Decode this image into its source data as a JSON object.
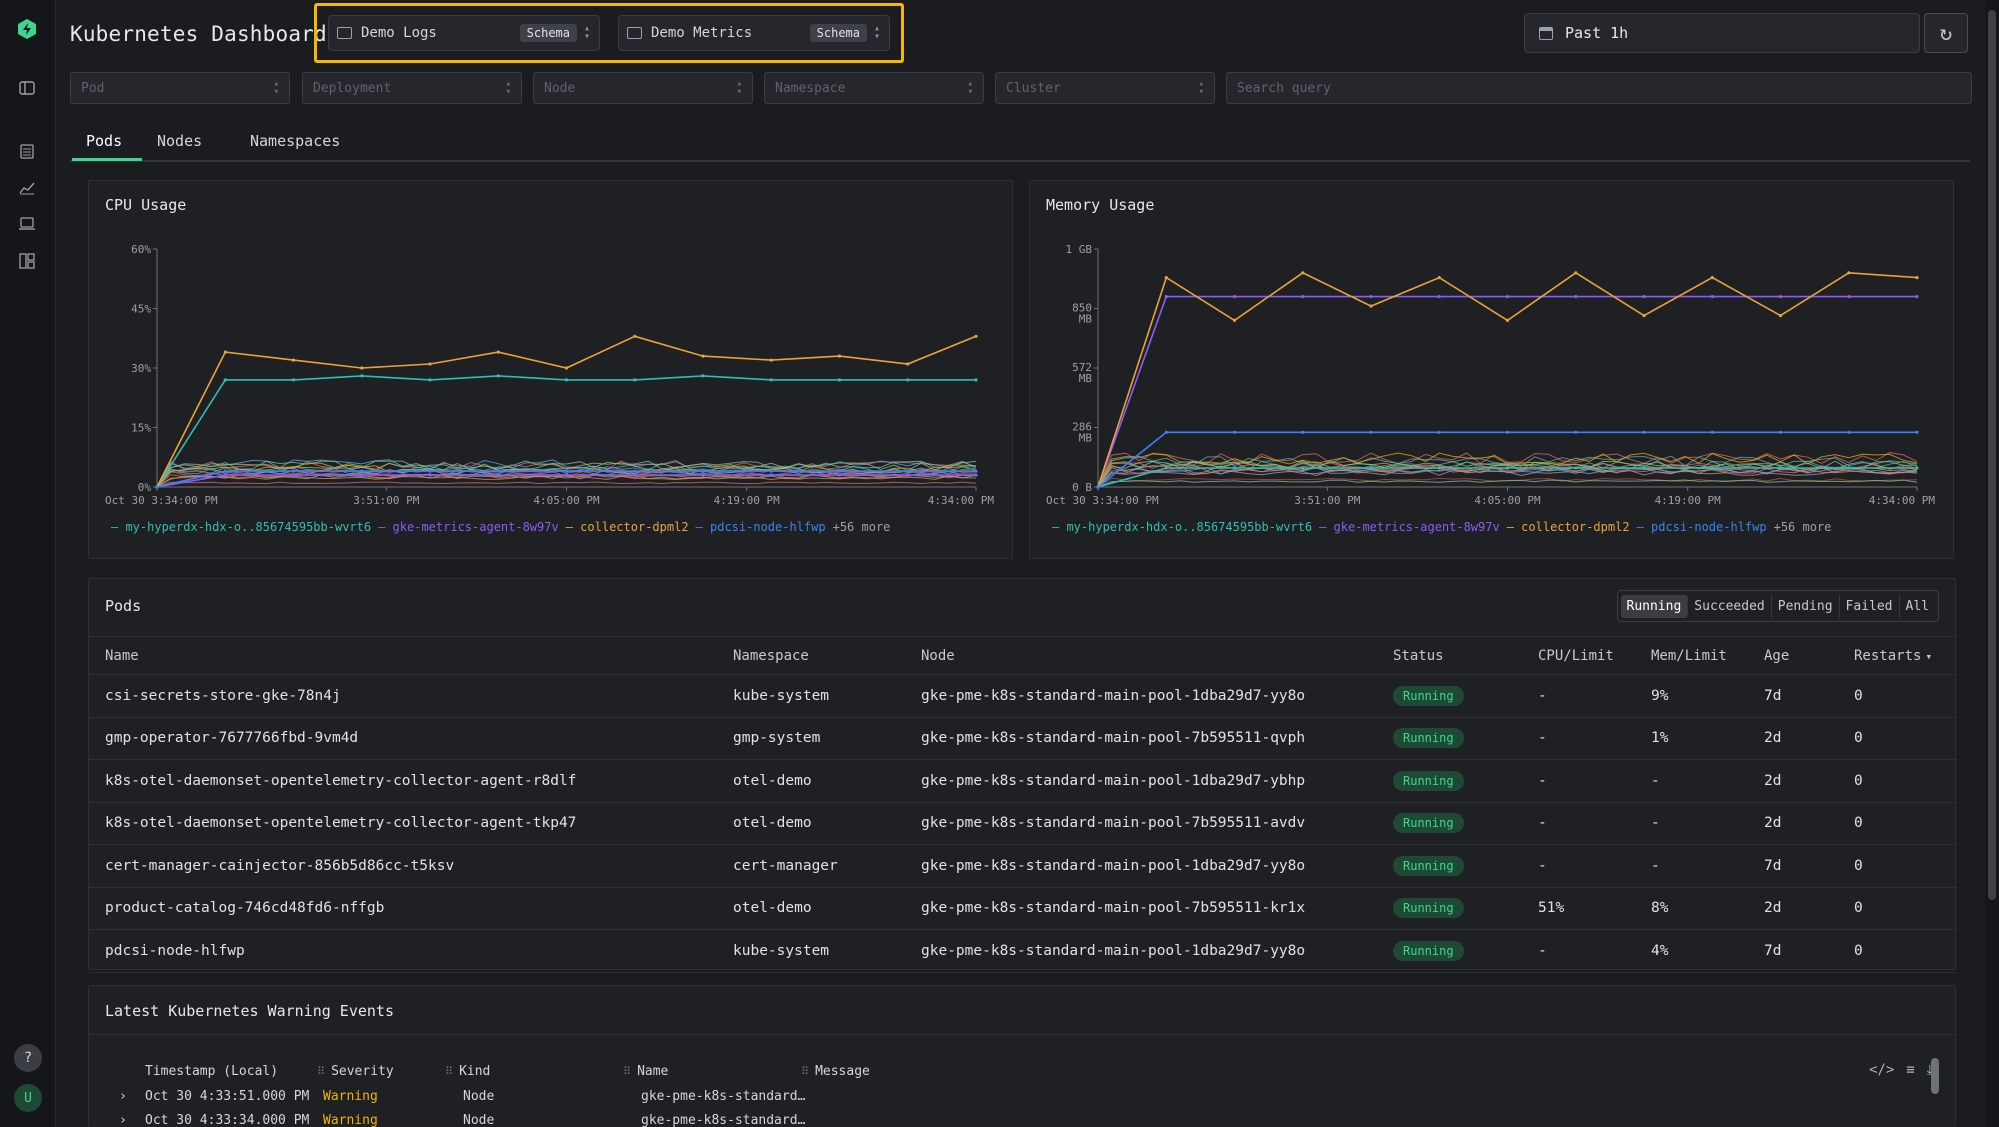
{
  "app": {
    "title": "Kubernetes Dashboard"
  },
  "sources": [
    {
      "label": "Demo Logs",
      "badge": "Schema"
    },
    {
      "label": "Demo Metrics",
      "badge": "Schema"
    }
  ],
  "time_range": {
    "label": "Past 1h"
  },
  "filters": {
    "pod": "Pod",
    "deployment": "Deployment",
    "node": "Node",
    "namespace": "Namespace",
    "cluster": "Cluster",
    "search_placeholder": "Search query"
  },
  "tabs": [
    {
      "label": "Pods",
      "active": true
    },
    {
      "label": "Nodes"
    },
    {
      "label": "Namespaces"
    }
  ],
  "charts": {
    "cpu": {
      "title": "CPU Usage",
      "yticks": [
        "60%",
        "45%",
        "30%",
        "15%",
        "0%"
      ],
      "xticks": [
        "Oct 30 3:34:00 PM",
        "3:51:00 PM",
        "4:05:00 PM",
        "4:19:00 PM",
        "4:34:00 PM"
      ]
    },
    "memory": {
      "title": "Memory Usage",
      "yticks": [
        "1 GB",
        "850 MB",
        "572 MB",
        "286 MB",
        "0 B"
      ],
      "xticks": [
        "Oct 30 3:34:00 PM",
        "3:51:00 PM",
        "4:05:00 PM",
        "4:19:00 PM",
        "4:34:00 PM"
      ]
    },
    "legend": [
      {
        "name": "my-hyperdx-hdx-o..85674595bb-wvrt6",
        "color": "#2ebfb1"
      },
      {
        "name": "gke-metrics-agent-8w97v",
        "color": "#8b5cf6"
      },
      {
        "name": "collector-dpml2",
        "color": "#e8a43a"
      },
      {
        "name": "pdcsi-node-hlfwp",
        "color": "#3b82f6"
      }
    ],
    "legend_more": "+56 more"
  },
  "chart_data": [
    {
      "type": "line",
      "title": "CPU Usage",
      "ylim": [
        0,
        60
      ],
      "y_unit": "%",
      "x": [
        "3:34",
        "3:39",
        "3:44",
        "3:49",
        "3:54",
        "3:59",
        "4:04",
        "4:09",
        "4:14",
        "4:19",
        "4:24",
        "4:29",
        "4:34"
      ],
      "series": [
        {
          "name": "my-hyperdx-hdx-o..85674595bb-wvrt6",
          "values": [
            0,
            27,
            27,
            28,
            27,
            28,
            27,
            27,
            28,
            27,
            27,
            27,
            27
          ]
        },
        {
          "name": "gke-metrics-agent-8w97v",
          "values": [
            0,
            3,
            3,
            3,
            3,
            3,
            3,
            3,
            3,
            3,
            3,
            3,
            3
          ]
        },
        {
          "name": "collector-dpml2",
          "values": [
            0,
            34,
            32,
            30,
            31,
            34,
            30,
            38,
            33,
            32,
            33,
            31,
            38
          ]
        },
        {
          "name": "pdcsi-node-hlfwp",
          "values": [
            0,
            4,
            4,
            4,
            4,
            4,
            4,
            4,
            4,
            4,
            4,
            4,
            4
          ]
        }
      ]
    },
    {
      "type": "line",
      "title": "Memory Usage",
      "ylim": [
        0,
        1000
      ],
      "y_unit": "MB",
      "x": [
        "3:34",
        "3:39",
        "3:44",
        "3:49",
        "3:54",
        "3:59",
        "4:04",
        "4:09",
        "4:14",
        "4:19",
        "4:24",
        "4:29",
        "4:34"
      ],
      "series": [
        {
          "name": "my-hyperdx-hdx-o..85674595bb-wvrt6",
          "values": [
            0,
            80,
            80,
            80,
            80,
            80,
            80,
            80,
            80,
            80,
            80,
            80,
            80
          ]
        },
        {
          "name": "gke-metrics-agent-8w97v",
          "values": [
            0,
            800,
            800,
            800,
            800,
            800,
            800,
            800,
            800,
            800,
            800,
            800,
            800
          ]
        },
        {
          "name": "collector-dpml2",
          "values": [
            0,
            880,
            700,
            900,
            760,
            880,
            700,
            900,
            720,
            880,
            720,
            900,
            880
          ]
        },
        {
          "name": "pdcsi-node-hlfwp",
          "values": [
            0,
            230,
            230,
            230,
            230,
            230,
            230,
            230,
            230,
            230,
            230,
            230,
            230
          ]
        }
      ]
    }
  ],
  "pods": {
    "title": "Pods",
    "filters": [
      {
        "label": "Running",
        "active": true
      },
      {
        "label": "Succeeded"
      },
      {
        "label": "Pending"
      },
      {
        "label": "Failed"
      },
      {
        "label": "All"
      }
    ],
    "columns": [
      "Name",
      "Namespace",
      "Node",
      "Status",
      "CPU/Limit",
      "Mem/Limit",
      "Age",
      "Restarts"
    ],
    "sort_indicator": "▾",
    "rows": [
      {
        "name": "csi-secrets-store-gke-78n4j",
        "namespace": "kube-system",
        "node": "gke-pme-k8s-standard-main-pool-1dba29d7-yy8o",
        "status": "Running",
        "cpu": "-",
        "mem": "9%",
        "age": "7d",
        "restarts": "0"
      },
      {
        "name": "gmp-operator-7677766fbd-9vm4d",
        "namespace": "gmp-system",
        "node": "gke-pme-k8s-standard-main-pool-7b595511-qvph",
        "status": "Running",
        "cpu": "-",
        "mem": "1%",
        "age": "2d",
        "restarts": "0"
      },
      {
        "name": "k8s-otel-daemonset-opentelemetry-collector-agent-r8dlf",
        "namespace": "otel-demo",
        "node": "gke-pme-k8s-standard-main-pool-1dba29d7-ybhp",
        "status": "Running",
        "cpu": "-",
        "mem": "-",
        "age": "2d",
        "restarts": "0"
      },
      {
        "name": "k8s-otel-daemonset-opentelemetry-collector-agent-tkp47",
        "namespace": "otel-demo",
        "node": "gke-pme-k8s-standard-main-pool-7b595511-avdv",
        "status": "Running",
        "cpu": "-",
        "mem": "-",
        "age": "2d",
        "restarts": "0"
      },
      {
        "name": "cert-manager-cainjector-856b5d86cc-t5ksv",
        "namespace": "cert-manager",
        "node": "gke-pme-k8s-standard-main-pool-1dba29d7-yy8o",
        "status": "Running",
        "cpu": "-",
        "mem": "-",
        "age": "7d",
        "restarts": "0"
      },
      {
        "name": "product-catalog-746cd48fd6-nffgb",
        "namespace": "otel-demo",
        "node": "gke-pme-k8s-standard-main-pool-7b595511-kr1x",
        "status": "Running",
        "cpu": "51%",
        "mem": "8%",
        "age": "2d",
        "restarts": "0"
      },
      {
        "name": "pdcsi-node-hlfwp",
        "namespace": "kube-system",
        "node": "gke-pme-k8s-standard-main-pool-1dba29d7-yy8o",
        "status": "Running",
        "cpu": "-",
        "mem": "4%",
        "age": "7d",
        "restarts": "0"
      }
    ]
  },
  "events": {
    "title": "Latest Kubernetes Warning Events",
    "columns": [
      "Timestamp (Local)",
      "Severity",
      "Kind",
      "Name",
      "Message"
    ],
    "rows": [
      {
        "timestamp": "Oct 30 4:33:51.000 PM",
        "severity": "Warning",
        "kind": "Node",
        "name": "gke-pme-k8s-standard…"
      },
      {
        "timestamp": "Oct 30 4:33:34.000 PM",
        "severity": "Warning",
        "kind": "Node",
        "name": "gke-pme-k8s-standard…"
      }
    ]
  },
  "user": {
    "avatar": "U",
    "help": "?"
  }
}
